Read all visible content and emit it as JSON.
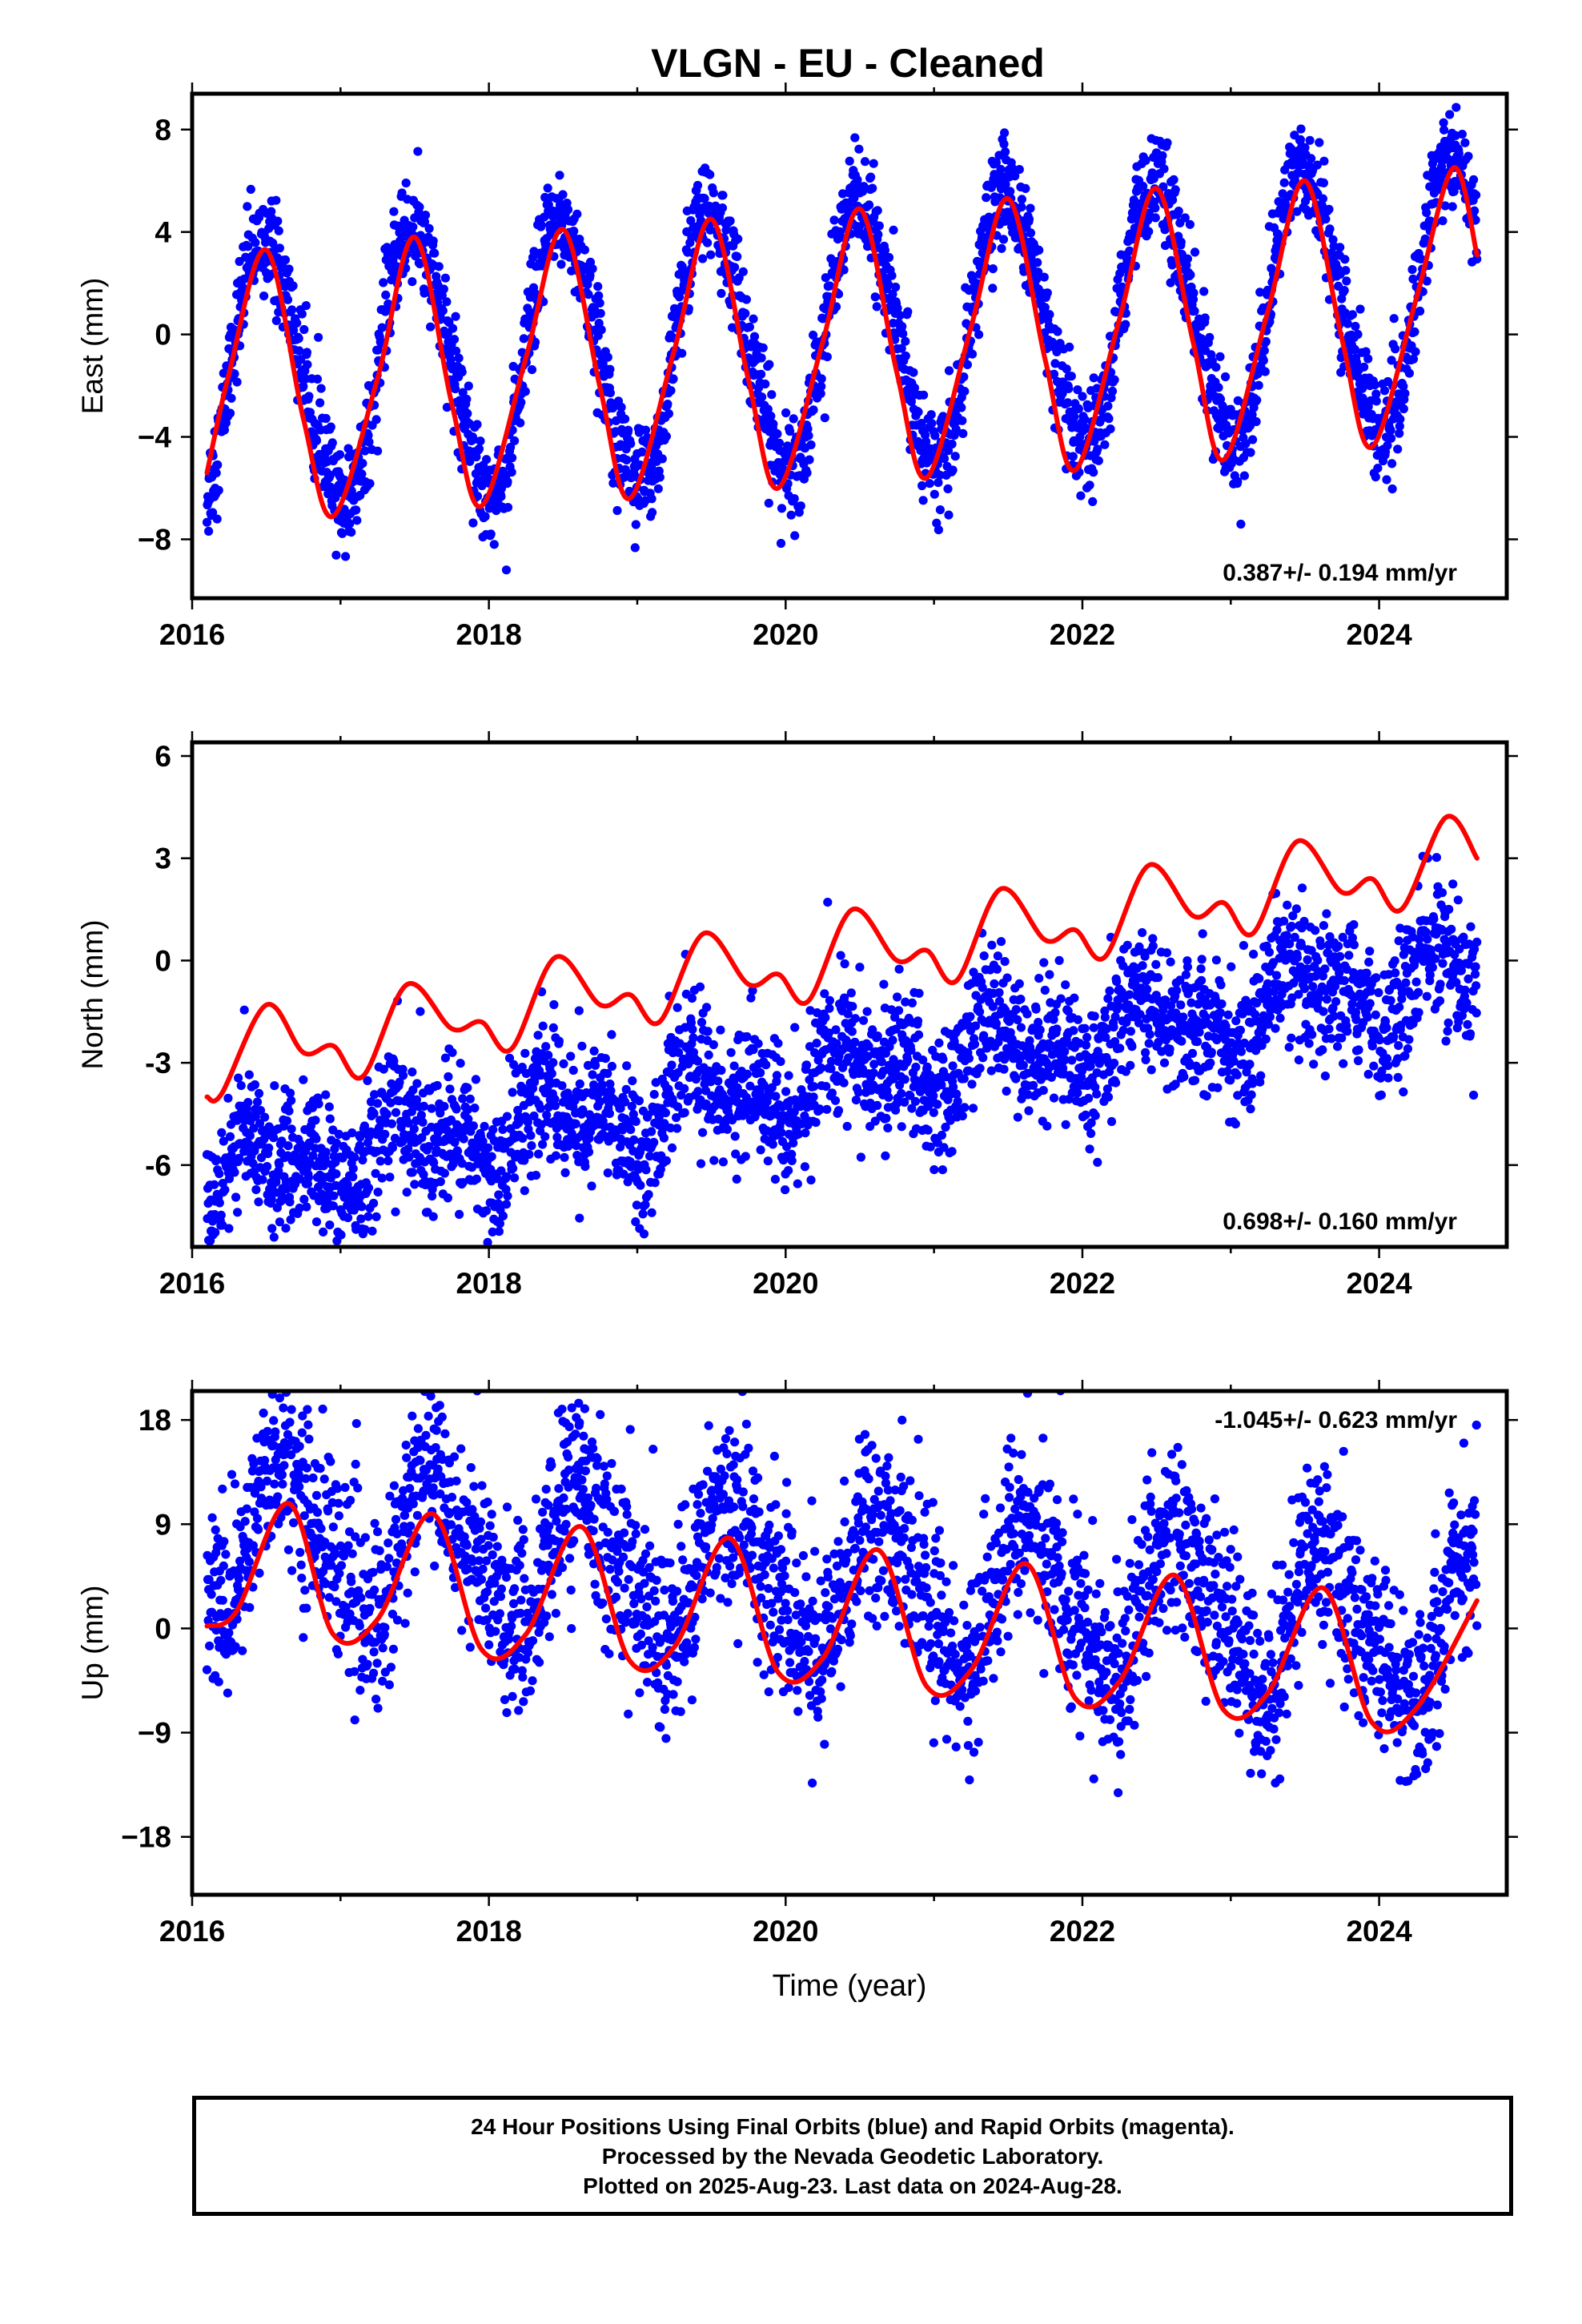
{
  "title": "VLGN  - EU - Cleaned",
  "footer": {
    "line1": "24 Hour Positions Using Final Orbits (blue) and Rapid Orbits (magenta).",
    "line2": "Processed by the Nevada Geodetic Laboratory.",
    "line3": "Plotted on 2025-Aug-23. Last data on 2024-Aug-28."
  },
  "colors": {
    "points": "#0000ff",
    "fit": "#ff0000",
    "frame": "#000000"
  },
  "chart_data": [
    {
      "type": "scatter",
      "ylabel": "East (mm)",
      "rate_label": "0.387+/- 0.194 mm/yr",
      "xlim": [
        2016.0,
        2024.86
      ],
      "ylim": [
        -10.3,
        9.4
      ],
      "xticks": [
        2016,
        2018,
        2020,
        2022,
        2024
      ],
      "yticks": [
        8,
        4,
        0,
        -4,
        -8
      ],
      "ytick_labels": [
        "8",
        "4",
        "0",
        "−4",
        "−8"
      ],
      "series": [
        {
          "role": "fit",
          "x": [
            2016.1,
            2016.25,
            2016.5,
            2016.75,
            2016.95,
            2017.25,
            2017.5,
            2017.75,
            2017.95,
            2018.25,
            2018.5,
            2018.75,
            2018.95,
            2019.25,
            2019.5,
            2019.75,
            2019.95,
            2020.25,
            2020.5,
            2020.75,
            2020.95,
            2021.25,
            2021.5,
            2021.75,
            2021.95,
            2022.25,
            2022.5,
            2022.75,
            2022.95,
            2023.25,
            2023.5,
            2023.75,
            2023.95,
            2024.25,
            2024.5,
            2024.66
          ],
          "y": [
            -5.4,
            -1.5,
            3.3,
            -3.3,
            -7.1,
            -1.7,
            3.8,
            -2.7,
            -6.7,
            -0.9,
            4.1,
            -2.1,
            -6.4,
            -0.6,
            4.5,
            -1.8,
            -6.0,
            -0.3,
            4.9,
            -1.5,
            -5.6,
            0.3,
            5.3,
            -1.0,
            -5.3,
            0.6,
            5.7,
            -0.4,
            -4.9,
            0.9,
            6.0,
            -0.2,
            -4.4,
            1.4,
            6.5,
            3.1
          ]
        },
        {
          "role": "daily",
          "rate": 0.387,
          "t0": 2016.1,
          "t1": 2024.66,
          "seasonal": [
            {
              "amp": 5.15,
              "period": 1.0,
              "phase": 0.25
            },
            {
              "amp": 0.5,
              "period": 0.5,
              "phase": 0.25
            }
          ],
          "noise": 1.0,
          "offset": 0.0
        }
      ]
    },
    {
      "type": "scatter",
      "ylabel": "North (mm)",
      "rate_label": "0.698+/- 0.160 mm/yr",
      "xlim": [
        2016.0,
        2024.86
      ],
      "ylim": [
        -8.4,
        6.4
      ],
      "xticks": [
        2016,
        2018,
        2020,
        2022,
        2024
      ],
      "yticks": [
        6,
        3,
        0,
        -3,
        -6
      ],
      "ytick_labels": [
        "6",
        "3",
        "0",
        "-3",
        "-6"
      ],
      "series": [
        {
          "role": "fit",
          "x": [
            2016.1,
            2016.2,
            2016.5,
            2016.75,
            2016.95,
            2017.15,
            2017.45,
            2017.75,
            2017.95,
            2018.15,
            2018.45,
            2018.75,
            2018.95,
            2019.15,
            2019.45,
            2019.75,
            2019.95,
            2020.15,
            2020.45,
            2020.75,
            2020.95,
            2021.15,
            2021.45,
            2021.75,
            2021.95,
            2022.15,
            2022.45,
            2022.75,
            2022.95,
            2023.15,
            2023.45,
            2023.75,
            2023.95,
            2024.15,
            2024.45,
            2024.66
          ],
          "y": [
            -4.0,
            -3.9,
            -1.3,
            -2.7,
            -2.5,
            -3.4,
            -0.7,
            -2.0,
            -1.8,
            -2.6,
            0.1,
            -1.3,
            -1.0,
            -1.8,
            0.8,
            -0.7,
            -0.4,
            -1.2,
            1.5,
            0.0,
            0.3,
            -0.6,
            2.1,
            0.6,
            0.9,
            0.1,
            2.8,
            1.3,
            1.7,
            0.8,
            3.5,
            2.0,
            2.4,
            1.5,
            4.2,
            3.0
          ]
        },
        {
          "role": "daily",
          "rate": 0.698,
          "t0": 2016.1,
          "t1": 2024.66,
          "seasonal": [
            {
              "amp": 0.75,
              "period": 1.0,
              "phase": 0.2
            },
            {
              "amp": 0.6,
              "period": 0.5,
              "phase": 0.2
            }
          ],
          "noise": 1.0,
          "offset": -3.4
        }
      ]
    },
    {
      "type": "scatter",
      "ylabel": "Up (mm)",
      "xlabel": "Time (year)",
      "rate_label": "-1.045+/- 0.623 mm/yr",
      "xlim": [
        2016.0,
        2024.86
      ],
      "ylim": [
        -23.0,
        20.5
      ],
      "xticks": [
        2016,
        2018,
        2020,
        2022,
        2024
      ],
      "yticks": [
        18,
        9,
        0,
        -9,
        -18
      ],
      "ytick_labels": [
        "18",
        "9",
        "0",
        "−9",
        "−18"
      ],
      "series": [
        {
          "role": "fit",
          "x": [
            2016.1,
            2016.3,
            2016.65,
            2016.95,
            2017.25,
            2017.62,
            2017.95,
            2018.25,
            2018.62,
            2018.95,
            2019.25,
            2019.62,
            2019.95,
            2020.25,
            2020.62,
            2020.95,
            2021.25,
            2021.62,
            2021.95,
            2022.25,
            2022.62,
            2022.95,
            2023.25,
            2023.62,
            2023.95,
            2024.25,
            2024.66
          ],
          "y": [
            0.2,
            1.5,
            10.8,
            -0.5,
            0.8,
            9.9,
            -1.8,
            -0.5,
            8.8,
            -2.8,
            -1.6,
            7.8,
            -3.8,
            -2.6,
            6.8,
            -5.0,
            -3.6,
            5.6,
            -6.0,
            -4.6,
            4.6,
            -7.0,
            -5.6,
            3.5,
            -8.1,
            -6.9,
            2.4
          ]
        },
        {
          "role": "daily",
          "rate": -1.045,
          "t0": 2016.1,
          "t1": 2024.66,
          "seasonal": [
            {
              "amp": 6.0,
              "period": 1.0,
              "phase": 0.4
            },
            {
              "amp": 1.5,
              "period": 0.5,
              "phase": 0.4
            }
          ],
          "noise": 4.0,
          "offset": 4.0
        }
      ]
    }
  ]
}
